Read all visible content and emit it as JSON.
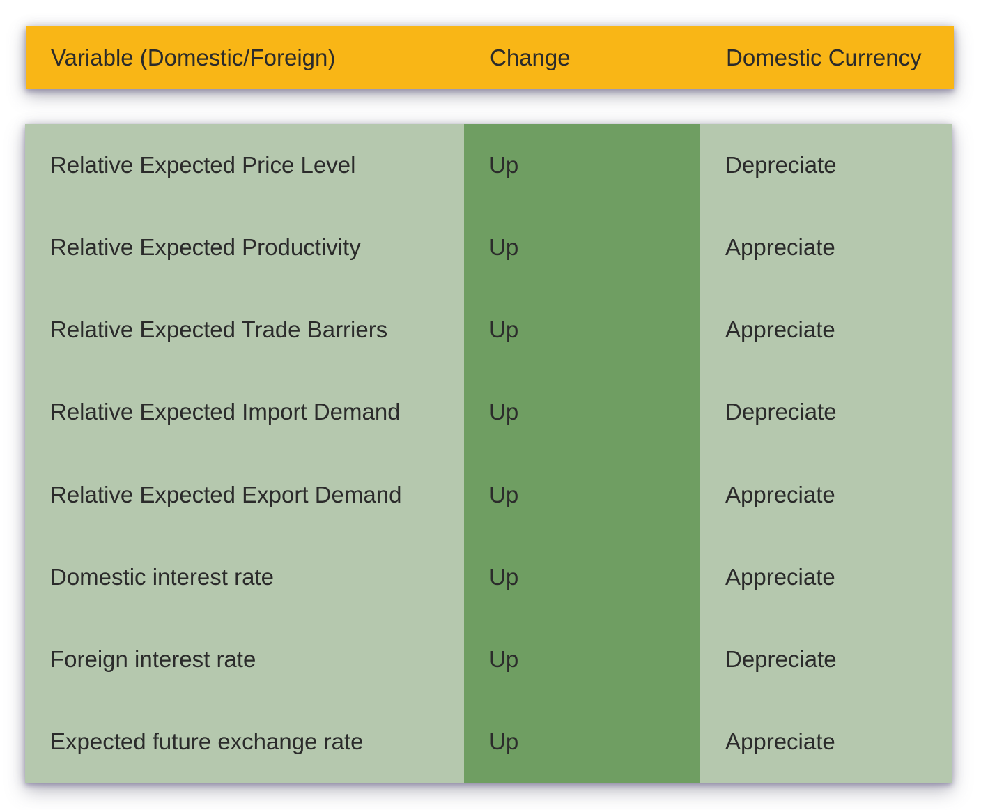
{
  "header": {
    "variable": "Variable (Domestic/Foreign)",
    "change": "Change",
    "currency": "Domestic Currency"
  },
  "rows": [
    {
      "variable": "Relative Expected Price Level",
      "change": "Up",
      "currency": "Depreciate"
    },
    {
      "variable": "Relative Expected Productivity",
      "change": "Up",
      "currency": "Appreciate"
    },
    {
      "variable": "Relative Expected Trade Barriers",
      "change": "Up",
      "currency": "Appreciate"
    },
    {
      "variable": "Relative Expected Import Demand",
      "change": "Up",
      "currency": "Depreciate"
    },
    {
      "variable": "Relative Expected Export Demand",
      "change": "Up",
      "currency": "Appreciate"
    },
    {
      "variable": "Domestic interest rate",
      "change": "Up",
      "currency": "Appreciate"
    },
    {
      "variable": "Foreign interest rate",
      "change": "Up",
      "currency": "Depreciate"
    },
    {
      "variable": "Expected future exchange rate",
      "change": "Up",
      "currency": "Appreciate"
    }
  ],
  "colors": {
    "header_background": "#F9B616",
    "body_background": "#B5C8AE",
    "change_column_background": "#6F9E62",
    "text": "#2B2B2B",
    "page_background": "#FFFFFF"
  },
  "chart_data": {
    "type": "table",
    "columns": [
      "Variable (Domestic/Foreign)",
      "Change",
      "Domestic Currency"
    ],
    "rows": [
      [
        "Relative Expected Price Level",
        "Up",
        "Depreciate"
      ],
      [
        "Relative Expected Productivity",
        "Up",
        "Appreciate"
      ],
      [
        "Relative Expected Trade Barriers",
        "Up",
        "Appreciate"
      ],
      [
        "Relative Expected Import Demand",
        "Up",
        "Depreciate"
      ],
      [
        "Relative Expected Export Demand",
        "Up",
        "Appreciate"
      ],
      [
        "Domestic interest rate",
        "Up",
        "Appreciate"
      ],
      [
        "Foreign interest rate",
        "Up",
        "Depreciate"
      ],
      [
        "Expected future exchange rate",
        "Up",
        "Appreciate"
      ]
    ],
    "legend_position": "none",
    "grid": false
  }
}
